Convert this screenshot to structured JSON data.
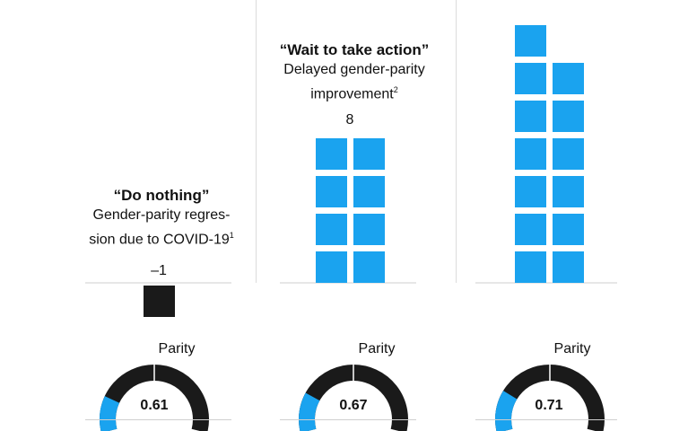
{
  "chart_data": {
    "type": "bar",
    "unit_block_color": "#1aa3ef",
    "negative_block_color": "#1a1a1a",
    "gauge_track_color": "#1a1a1a",
    "gauge_fill_color": "#1aa3ef",
    "scenarios": [
      {
        "title": "“Do nothing”",
        "subtitle_lines": [
          "Gender-parity regres-",
          "sion due to COVID-19"
        ],
        "subtitle_footnote": "1",
        "value": -1,
        "value_label": "–1",
        "parity_label": "Parity",
        "parity_value": 0.61,
        "parity_value_label": "0.61"
      },
      {
        "title": "“Wait to take action”",
        "subtitle_lines": [
          "Delayed gender-parity",
          "improvement"
        ],
        "subtitle_footnote": "2",
        "value": 8,
        "value_label": "8",
        "parity_label": "Parity",
        "parity_value": 0.67,
        "parity_value_label": "0.67"
      },
      {
        "title": "",
        "subtitle_lines": [],
        "subtitle_footnote": "",
        "value": 13,
        "value_label": "",
        "parity_label": "Parity",
        "parity_value": 0.71,
        "parity_value_label": "0.71"
      }
    ]
  }
}
